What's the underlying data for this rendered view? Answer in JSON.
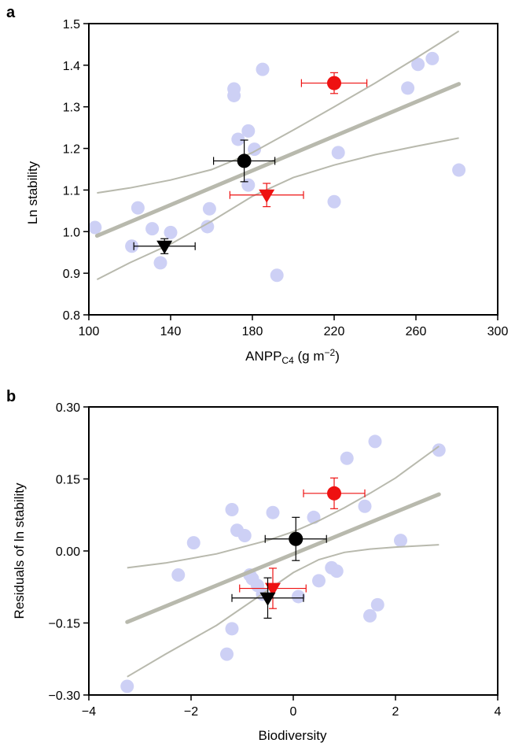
{
  "chart_data": [
    {
      "panel": "a",
      "type": "scatter",
      "xlabel": "ANPP",
      "xlabel_sub": "C4",
      "xlabel_unit": " (g m",
      "xlabel_sup": "−2",
      "xlabel_close": ")",
      "ylabel": "Ln stability",
      "xlim": [
        100,
        300
      ],
      "ylim": [
        0.8,
        1.5
      ],
      "xticks": [
        100,
        140,
        180,
        220,
        260,
        300
      ],
      "xtick_labels": [
        "100",
        "140",
        "180",
        "220",
        "260",
        "300"
      ],
      "yticks": [
        0.8,
        0.9,
        1.0,
        1.1,
        1.2,
        1.3,
        1.4,
        1.5
      ],
      "ytick_labels": [
        "0.8",
        "0.9",
        "1.0",
        "1.1",
        "1.2",
        "1.3",
        "1.4",
        "1.5"
      ],
      "background_points": [
        {
          "x": 103,
          "y": 1.01
        },
        {
          "x": 121,
          "y": 0.965
        },
        {
          "x": 124,
          "y": 1.057
        },
        {
          "x": 131,
          "y": 1.007
        },
        {
          "x": 135,
          "y": 0.925
        },
        {
          "x": 140,
          "y": 0.998
        },
        {
          "x": 158,
          "y": 1.012
        },
        {
          "x": 159,
          "y": 1.055
        },
        {
          "x": 171,
          "y": 1.327
        },
        {
          "x": 171,
          "y": 1.343
        },
        {
          "x": 173,
          "y": 1.222
        },
        {
          "x": 178,
          "y": 1.242
        },
        {
          "x": 178,
          "y": 1.112
        },
        {
          "x": 181,
          "y": 1.198
        },
        {
          "x": 185,
          "y": 1.39
        },
        {
          "x": 192,
          "y": 0.895
        },
        {
          "x": 220,
          "y": 1.072
        },
        {
          "x": 222,
          "y": 1.19
        },
        {
          "x": 256,
          "y": 1.345
        },
        {
          "x": 261,
          "y": 1.402
        },
        {
          "x": 268,
          "y": 1.416
        },
        {
          "x": 281,
          "y": 1.148
        }
      ],
      "highlight_points": [
        {
          "shape": "circle",
          "color": "#000000",
          "x": 176,
          "y": 1.17,
          "xerr": 15,
          "yerr": 0.05
        },
        {
          "shape": "circle",
          "color": "#ee1111",
          "x": 220,
          "y": 1.357,
          "xerr": 16,
          "yerr": 0.025
        },
        {
          "shape": "triangle",
          "color": "#ee1111",
          "x": 187,
          "y": 1.088,
          "xerr": 18,
          "yerr": 0.028
        },
        {
          "shape": "triangle",
          "color": "#000000",
          "x": 137,
          "y": 0.965,
          "xerr": 15,
          "yerr": 0.018
        }
      ],
      "fit_line": {
        "x": [
          104,
          281
        ],
        "y": [
          0.99,
          1.355
        ]
      },
      "ci_upper": {
        "x": [
          104,
          120,
          140,
          160,
          180,
          200,
          220,
          240,
          260,
          281
        ],
        "y": [
          1.093,
          1.105,
          1.124,
          1.149,
          1.19,
          1.244,
          1.3,
          1.357,
          1.417,
          1.482
        ]
      },
      "ci_lower": {
        "x": [
          104,
          120,
          140,
          160,
          180,
          200,
          220,
          240,
          260,
          281
        ],
        "y": [
          0.885,
          0.925,
          0.97,
          1.025,
          1.085,
          1.13,
          1.16,
          1.185,
          1.205,
          1.225
        ]
      }
    },
    {
      "panel": "b",
      "type": "scatter",
      "xlabel": "Biodiversity",
      "ylabel": "Residuals of ln stability",
      "xlim": [
        -4,
        4
      ],
      "ylim": [
        -0.3,
        0.3
      ],
      "xticks": [
        -4,
        -2,
        0,
        2,
        4
      ],
      "xtick_labels": [
        "−4",
        "−2",
        "0",
        "2",
        "4"
      ],
      "yticks": [
        -0.3,
        -0.15,
        0,
        0.15,
        0.3
      ],
      "ytick_labels": [
        "−0.30",
        "−0.15",
        "0.00",
        "0.15",
        "0.30"
      ],
      "background_points": [
        {
          "x": -3.25,
          "y": -0.282
        },
        {
          "x": -2.25,
          "y": -0.05
        },
        {
          "x": -1.95,
          "y": 0.017
        },
        {
          "x": -1.3,
          "y": -0.215
        },
        {
          "x": -1.2,
          "y": -0.162
        },
        {
          "x": -1.2,
          "y": 0.086
        },
        {
          "x": -1.1,
          "y": 0.043
        },
        {
          "x": -0.95,
          "y": 0.032
        },
        {
          "x": -0.85,
          "y": -0.05
        },
        {
          "x": -0.8,
          "y": -0.058
        },
        {
          "x": -0.7,
          "y": -0.072
        },
        {
          "x": -0.6,
          "y": -0.09
        },
        {
          "x": -0.4,
          "y": 0.08
        },
        {
          "x": 0.1,
          "y": -0.095
        },
        {
          "x": 0.4,
          "y": 0.07
        },
        {
          "x": 0.5,
          "y": -0.062
        },
        {
          "x": 0.75,
          "y": -0.035
        },
        {
          "x": 0.85,
          "y": -0.042
        },
        {
          "x": 1.05,
          "y": 0.193
        },
        {
          "x": 1.4,
          "y": 0.093
        },
        {
          "x": 1.5,
          "y": -0.135
        },
        {
          "x": 1.6,
          "y": 0.228
        },
        {
          "x": 1.65,
          "y": -0.112
        },
        {
          "x": 2.1,
          "y": 0.022
        },
        {
          "x": 2.85,
          "y": 0.21
        }
      ],
      "highlight_points": [
        {
          "shape": "circle",
          "color": "#000000",
          "x": 0.05,
          "y": 0.025,
          "xerr": 0.6,
          "yerr": 0.045
        },
        {
          "shape": "circle",
          "color": "#ee1111",
          "x": 0.8,
          "y": 0.12,
          "xerr": 0.6,
          "yerr": 0.032
        },
        {
          "shape": "triangle",
          "color": "#ee1111",
          "x": -0.4,
          "y": -0.078,
          "xerr": 0.65,
          "yerr": 0.042
        },
        {
          "shape": "triangle",
          "color": "#000000",
          "x": -0.5,
          "y": -0.098,
          "xerr": 0.7,
          "yerr": 0.042
        }
      ],
      "fit_line": {
        "x": [
          -3.25,
          2.85
        ],
        "y": [
          -0.148,
          0.118
        ]
      },
      "ci_upper": {
        "x": [
          -3.25,
          -2.5,
          -1.5,
          -0.5,
          0,
          0.5,
          1,
          1.5,
          2,
          2.85
        ],
        "y": [
          -0.035,
          -0.025,
          -0.006,
          0.022,
          0.04,
          0.063,
          0.09,
          0.12,
          0.152,
          0.218
        ]
      },
      "ci_lower": {
        "x": [
          -3.25,
          -2.5,
          -1.5,
          -0.5,
          0,
          0.5,
          1,
          1.5,
          2,
          2.85
        ],
        "y": [
          -0.262,
          -0.215,
          -0.155,
          -0.082,
          -0.045,
          -0.018,
          -0.003,
          0.004,
          0.008,
          0.013
        ]
      }
    }
  ],
  "colors": {
    "background_point": "#cdd0f5",
    "fit_line": "#b8b9ad",
    "ci_line": "#b8b9ad",
    "red": "#ee1111",
    "black": "#000000"
  }
}
